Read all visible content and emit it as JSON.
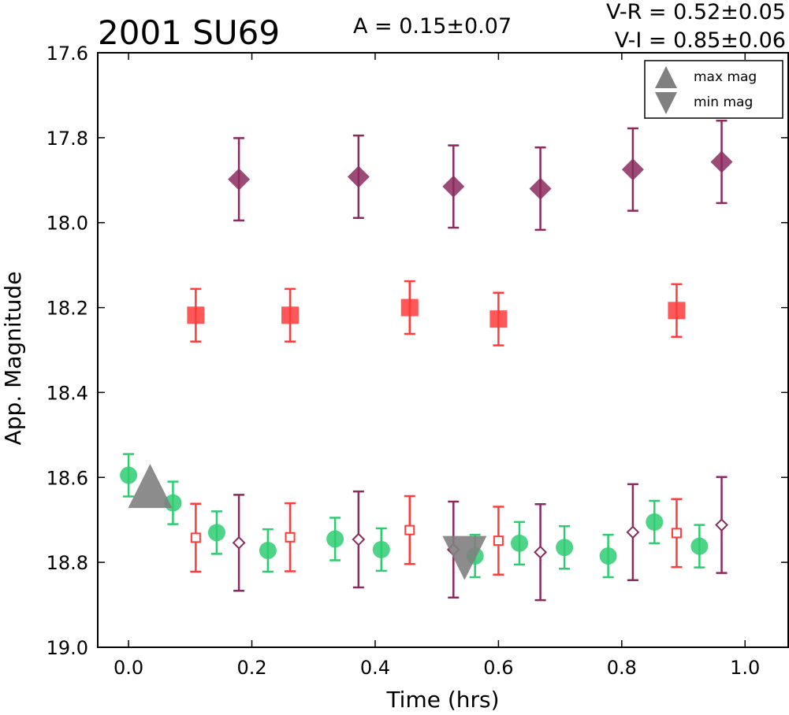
{
  "chart_data": {
    "type": "scatter",
    "title": "2001 SU69",
    "annotations": {
      "amplitude": "A  = 0.15±0.07",
      "v_r": "V-R = 0.52±0.05",
      "v_i": "V-I  = 0.85±0.06"
    },
    "xlabel": "Time (hrs)",
    "ylabel": "App. Magnitude",
    "xlim": [
      -0.05,
      1.07
    ],
    "ylim": [
      19.0,
      17.6
    ],
    "y_inverted": true,
    "xticks": [
      0.0,
      0.2,
      0.4,
      0.6,
      0.8,
      1.0
    ],
    "xtick_labels": [
      "0.0",
      "0.2",
      "0.4",
      "0.6",
      "0.8",
      "1.0"
    ],
    "yticks": [
      17.6,
      17.8,
      18.0,
      18.2,
      18.4,
      18.6,
      18.8,
      19.0
    ],
    "ytick_labels": [
      "17.6",
      "17.8",
      "18.0",
      "18.2",
      "18.4",
      "18.6",
      "18.8",
      "19.0"
    ],
    "grid": false,
    "legend": {
      "placement": "top-right",
      "entries": [
        {
          "label": "max mag",
          "marker": "triangle-up",
          "color": "#808080"
        },
        {
          "label": "min mag",
          "marker": "triangle-down",
          "color": "#808080"
        }
      ]
    },
    "series": [
      {
        "marker": "circle",
        "filled": true,
        "color": "#2ecc71",
        "points": [
          {
            "x": 0.0,
            "y": 18.595,
            "err": 0.05
          },
          {
            "x": 0.072,
            "y": 18.66,
            "err": 0.05
          },
          {
            "x": 0.143,
            "y": 18.73,
            "err": 0.05
          },
          {
            "x": 0.226,
            "y": 18.772,
            "err": 0.05
          },
          {
            "x": 0.335,
            "y": 18.745,
            "err": 0.05
          },
          {
            "x": 0.41,
            "y": 18.77,
            "err": 0.05
          },
          {
            "x": 0.562,
            "y": 18.785,
            "err": 0.05
          },
          {
            "x": 0.634,
            "y": 18.755,
            "err": 0.05
          },
          {
            "x": 0.707,
            "y": 18.765,
            "err": 0.05
          },
          {
            "x": 0.778,
            "y": 18.785,
            "err": 0.05
          },
          {
            "x": 0.853,
            "y": 18.705,
            "err": 0.05
          },
          {
            "x": 0.926,
            "y": 18.762,
            "err": 0.05
          }
        ]
      },
      {
        "marker": "square",
        "filled": true,
        "color": "#ff3b3b",
        "points": [
          {
            "x": 0.109,
            "y": 18.218,
            "err": 0.062
          },
          {
            "x": 0.262,
            "y": 18.218,
            "err": 0.062
          },
          {
            "x": 0.456,
            "y": 18.2,
            "err": 0.062
          },
          {
            "x": 0.6,
            "y": 18.227,
            "err": 0.062
          },
          {
            "x": 0.889,
            "y": 18.207,
            "err": 0.062
          }
        ]
      },
      {
        "marker": "diamond",
        "filled": true,
        "color": "#8b2a5e",
        "points": [
          {
            "x": 0.179,
            "y": 17.898,
            "err": 0.097
          },
          {
            "x": 0.373,
            "y": 17.892,
            "err": 0.097
          },
          {
            "x": 0.527,
            "y": 17.915,
            "err": 0.097
          },
          {
            "x": 0.668,
            "y": 17.92,
            "err": 0.097
          },
          {
            "x": 0.818,
            "y": 17.875,
            "err": 0.097
          },
          {
            "x": 0.962,
            "y": 17.857,
            "err": 0.097
          }
        ]
      },
      {
        "marker": "square",
        "filled": false,
        "color": "#ff3b3b",
        "points": [
          {
            "x": 0.109,
            "y": 18.742,
            "err": 0.08
          },
          {
            "x": 0.262,
            "y": 18.741,
            "err": 0.08
          },
          {
            "x": 0.456,
            "y": 18.724,
            "err": 0.08
          },
          {
            "x": 0.6,
            "y": 18.749,
            "err": 0.08
          },
          {
            "x": 0.889,
            "y": 18.731,
            "err": 0.08
          }
        ]
      },
      {
        "marker": "diamond",
        "filled": false,
        "color": "#8b2a5e",
        "points": [
          {
            "x": 0.179,
            "y": 18.754,
            "err": 0.113
          },
          {
            "x": 0.373,
            "y": 18.746,
            "err": 0.113
          },
          {
            "x": 0.527,
            "y": 18.77,
            "err": 0.113
          },
          {
            "x": 0.668,
            "y": 18.776,
            "err": 0.113
          },
          {
            "x": 0.818,
            "y": 18.729,
            "err": 0.113
          },
          {
            "x": 0.962,
            "y": 18.712,
            "err": 0.113
          }
        ]
      }
    ],
    "extrema": [
      {
        "marker": "triangle-up",
        "x": 0.035,
        "y": 18.635,
        "color": "#808080"
      },
      {
        "marker": "triangle-down",
        "x": 0.545,
        "y": 18.775,
        "color": "#808080"
      }
    ]
  }
}
